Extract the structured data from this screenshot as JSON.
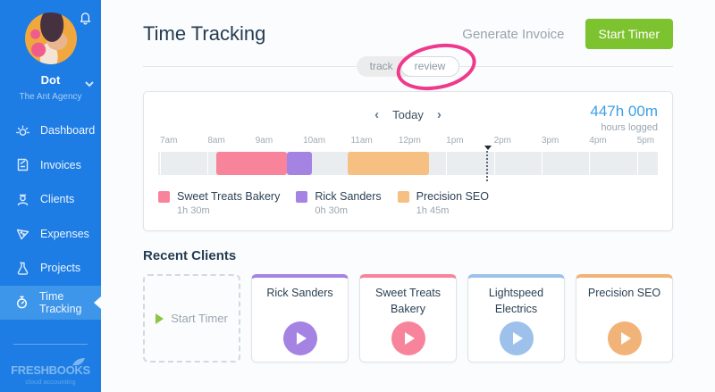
{
  "sidebar": {
    "user": {
      "name": "Dot",
      "company": "The Ant Agency"
    },
    "nav": [
      {
        "label": "Dashboard",
        "icon": "dashboard-icon",
        "active": false
      },
      {
        "label": "Invoices",
        "icon": "invoices-icon",
        "active": false
      },
      {
        "label": "Clients",
        "icon": "clients-icon",
        "active": false
      },
      {
        "label": "Expenses",
        "icon": "expenses-icon",
        "active": false
      },
      {
        "label": "Projects",
        "icon": "projects-icon",
        "active": false
      },
      {
        "label": "Time Tracking",
        "icon": "time-tracking-icon",
        "active": true
      }
    ],
    "logo": {
      "brand": "FRESHBOOKS",
      "tagline": "cloud accounting"
    }
  },
  "header": {
    "title": "Time Tracking",
    "generate_invoice_label": "Generate Invoice",
    "start_timer_label": "Start Timer"
  },
  "view_toggle": {
    "options": [
      {
        "label": "track",
        "selected": false
      },
      {
        "label": "review",
        "selected": true
      }
    ],
    "annotation_color": "#ee3a8c"
  },
  "timeline": {
    "nav": {
      "prev": "‹",
      "today_label": "Today",
      "next": "›"
    },
    "total_hours": "447h 00m",
    "total_caption": "hours logged",
    "hour_labels": [
      "7am",
      "8am",
      "9am",
      "10am",
      "11am",
      "12pm",
      "1pm",
      "2pm",
      "3pm",
      "4pm",
      "5pm"
    ],
    "entries": [
      {
        "client": "Sweet Treats Bakery",
        "duration": "1h 30m",
        "color": "#f8849b",
        "start_pct": 11.7,
        "width_pct": 14.1
      },
      {
        "client": "Rick Sanders",
        "duration": "0h 30m",
        "color": "#a583e3",
        "start_pct": 25.8,
        "width_pct": 4.9
      },
      {
        "client": "Precision SEO",
        "duration": "1h 45m",
        "color": "#f7c083",
        "start_pct": 37.9,
        "width_pct": 16.3
      }
    ],
    "current_time_marker_pct": 65.6
  },
  "recent_clients": {
    "heading": "Recent Clients",
    "start_timer_card_label": "Start Timer",
    "clients": [
      {
        "name": "Rick Sanders",
        "color": "#a583e3"
      },
      {
        "name": "Sweet Treats Bakery",
        "color": "#f8849b"
      },
      {
        "name": "Lightspeed Electrics",
        "color": "#9dc1ea"
      },
      {
        "name": "Precision SEO",
        "color": "#f2b378"
      }
    ]
  },
  "colors": {
    "sidebar_blue": "#1d7de4",
    "active_item_blue": "#3e96ea",
    "accent_green": "#7dc22f",
    "total_blue": "#3ca0e4",
    "annotation_pink": "#ee3a8c"
  }
}
